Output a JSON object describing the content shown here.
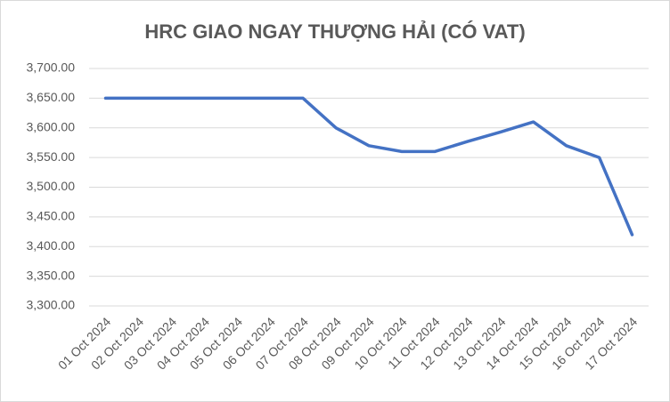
{
  "chart_data": {
    "type": "line",
    "title": "HRC GIAO NGAY THƯỢNG HẢI (CÓ VAT)",
    "categories": [
      "01 Oct 2024",
      "02 Oct 2024",
      "03 Oct 2024",
      "04 Oct 2024",
      "05 Oct 2024",
      "06 Oct 2024",
      "07 Oct 2024",
      "08 Oct 2024",
      "09 Oct 2024",
      "10 Oct 2024",
      "11 Oct 2024",
      "12 Oct 2024",
      "13 Oct 2024",
      "14 Oct 2024",
      "15 Oct 2024",
      "16 Oct 2024",
      "17 Oct 2024"
    ],
    "values": [
      3650,
      3650,
      3650,
      3650,
      3650,
      3650,
      3650,
      3600,
      3570,
      3560,
      3560,
      3577,
      3593,
      3610,
      3570,
      3550,
      3420
    ],
    "color": "#4472c4",
    "ylim": [
      3300,
      3700
    ],
    "yticks": [
      {
        "value": 3300,
        "label": "3,300.00"
      },
      {
        "value": 3350,
        "label": "3,350.00"
      },
      {
        "value": 3400,
        "label": "3,400.00"
      },
      {
        "value": 3450,
        "label": "3,450.00"
      },
      {
        "value": 3500,
        "label": "3,500.00"
      },
      {
        "value": 3550,
        "label": "3,550.00"
      },
      {
        "value": 3600,
        "label": "3,600.00"
      },
      {
        "value": 3650,
        "label": "3,650.00"
      },
      {
        "value": 3700,
        "label": "3,700.00"
      }
    ],
    "grid": true
  }
}
